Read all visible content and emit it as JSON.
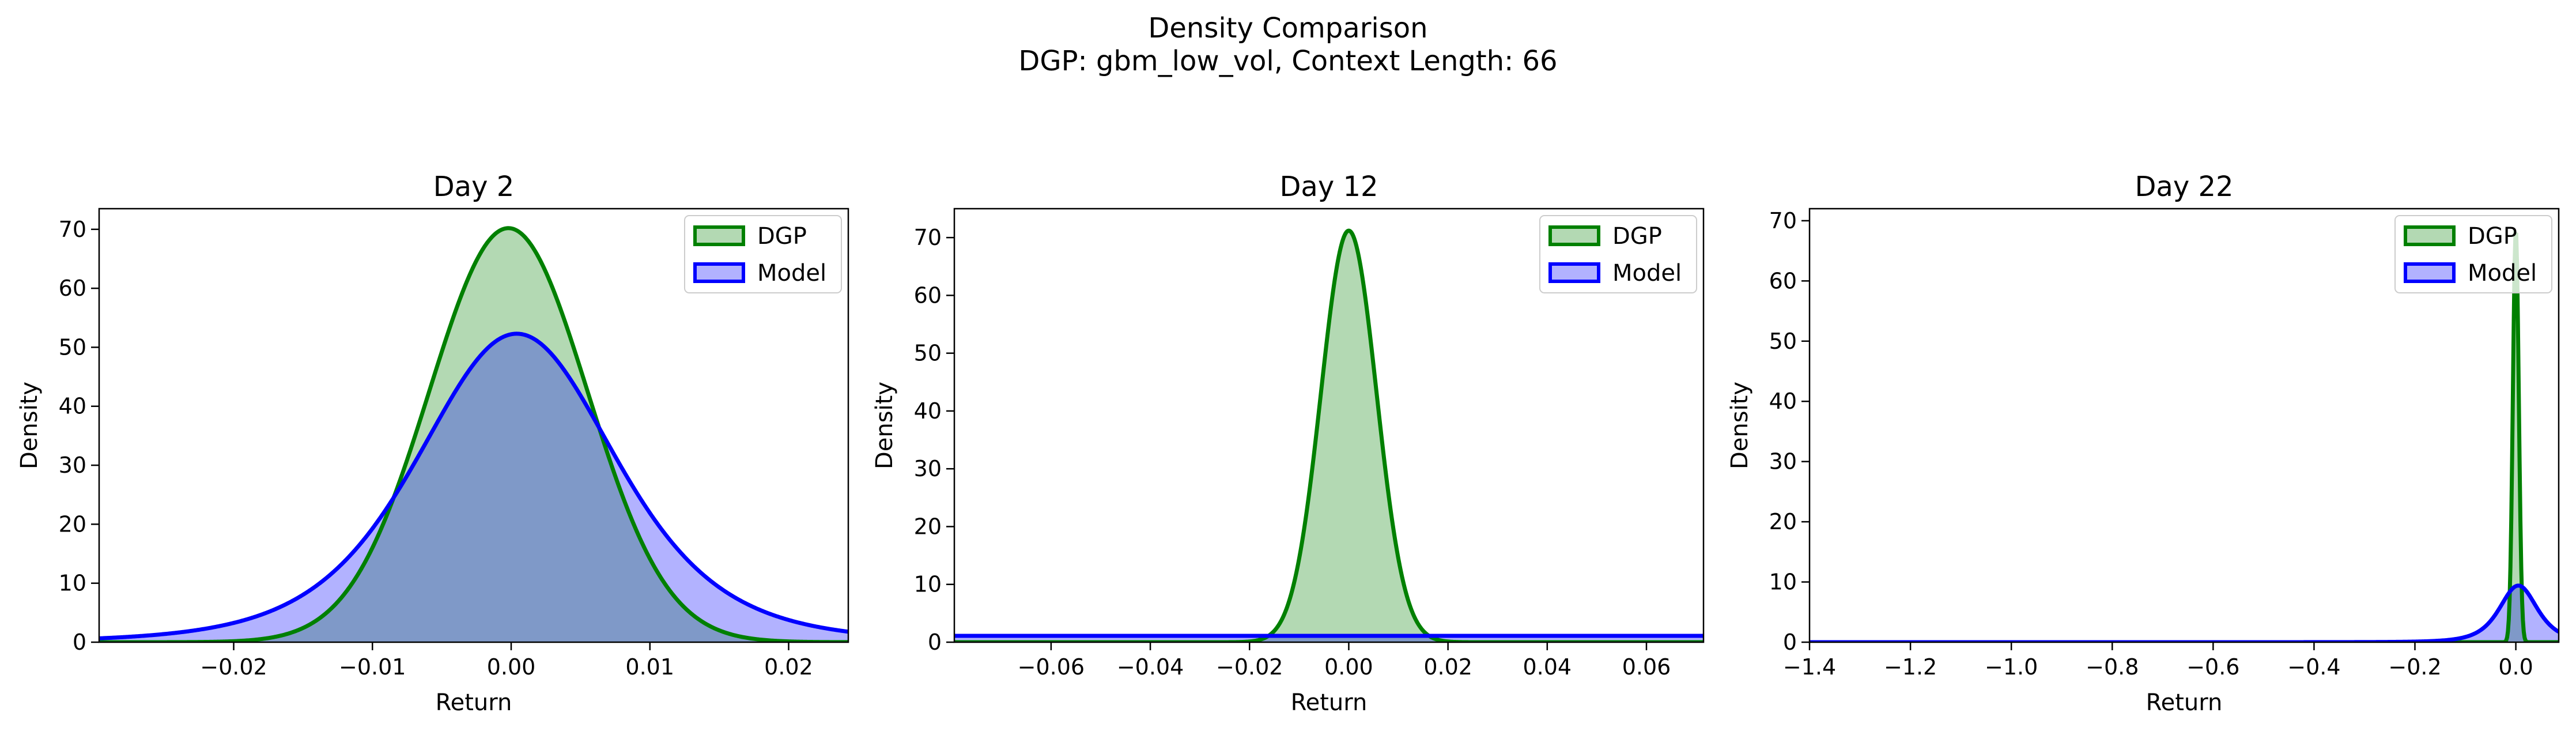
{
  "figure": {
    "title": "Density Comparison",
    "subtitle": "DGP: gbm_low_vol, Context Length: 66"
  },
  "colors": {
    "dgp_line": "#008000",
    "dgp_fill": "#b3d9b3",
    "model_line": "#0000ff",
    "model_fill": "#b2b2ff",
    "overlap_fill": "#7f99c8"
  },
  "chart_data": [
    {
      "type": "area",
      "title": "Day 2",
      "xlabel": "Return",
      "ylabel": "Density",
      "xlim": [
        -0.0297,
        0.0243
      ],
      "ylim": [
        0,
        73.5
      ],
      "xticks": [
        -0.02,
        -0.01,
        0.0,
        0.01,
        0.02
      ],
      "xtick_labels": [
        "−0.02",
        "−0.01",
        "0.00",
        "0.01",
        "0.02"
      ],
      "yticks": [
        0,
        10,
        20,
        30,
        40,
        50,
        60,
        70
      ],
      "ytick_labels": [
        "0",
        "10",
        "20",
        "30",
        "40",
        "50",
        "60",
        "70"
      ],
      "legend": {
        "position": "upper right",
        "entries": [
          "DGP",
          "Model"
        ]
      },
      "series": [
        {
          "name": "DGP",
          "dist": "normal",
          "mean": -0.0002,
          "std": 0.0057,
          "peak": 70.2
        },
        {
          "name": "Model",
          "dist": "t",
          "mean": 0.0004,
          "scale": 0.0074,
          "df": 5,
          "peak": 52.3
        }
      ]
    },
    {
      "type": "area",
      "title": "Day 12",
      "xlabel": "Return",
      "ylabel": "Density",
      "xlim": [
        -0.0795,
        0.0715
      ],
      "ylim": [
        0,
        75
      ],
      "xticks": [
        -0.06,
        -0.04,
        -0.02,
        0.0,
        0.02,
        0.04,
        0.06
      ],
      "xtick_labels": [
        "−0.06",
        "−0.04",
        "−0.02",
        "0.00",
        "0.02",
        "0.04",
        "0.06"
      ],
      "yticks": [
        0,
        10,
        20,
        30,
        40,
        50,
        60,
        70
      ],
      "ytick_labels": [
        "0",
        "10",
        "20",
        "30",
        "40",
        "50",
        "60",
        "70"
      ],
      "legend": {
        "position": "upper right",
        "entries": [
          "DGP",
          "Model"
        ]
      },
      "series": [
        {
          "name": "DGP",
          "dist": "normal",
          "mean": 0.0,
          "std": 0.0056,
          "peak": 71.2
        },
        {
          "name": "Model",
          "dist": "flat",
          "peak": 1.1
        }
      ]
    },
    {
      "type": "area",
      "title": "Day 22",
      "xlabel": "Return",
      "ylabel": "Density",
      "xlim": [
        -1.4,
        0.085
      ],
      "ylim": [
        0,
        72
      ],
      "xticks": [
        -1.4,
        -1.2,
        -1.0,
        -0.8,
        -0.6,
        -0.4,
        -0.2,
        0.0
      ],
      "xtick_labels": [
        "−1.4",
        "−1.2",
        "−1.0",
        "−0.8",
        "−0.6",
        "−0.4",
        "−0.2",
        "0.0"
      ],
      "yticks": [
        0,
        10,
        20,
        30,
        40,
        50,
        60,
        70
      ],
      "ytick_labels": [
        "0",
        "10",
        "20",
        "30",
        "40",
        "50",
        "60",
        "70"
      ],
      "legend": {
        "position": "upper right",
        "entries": [
          "DGP",
          "Model"
        ]
      },
      "series": [
        {
          "name": "DGP",
          "dist": "normal",
          "mean": 0.0,
          "std": 0.0058,
          "peak": 68.5
        },
        {
          "name": "Model",
          "dist": "t",
          "mean": 0.005,
          "scale": 0.04,
          "df": 3,
          "peak": 9.4
        }
      ]
    }
  ]
}
